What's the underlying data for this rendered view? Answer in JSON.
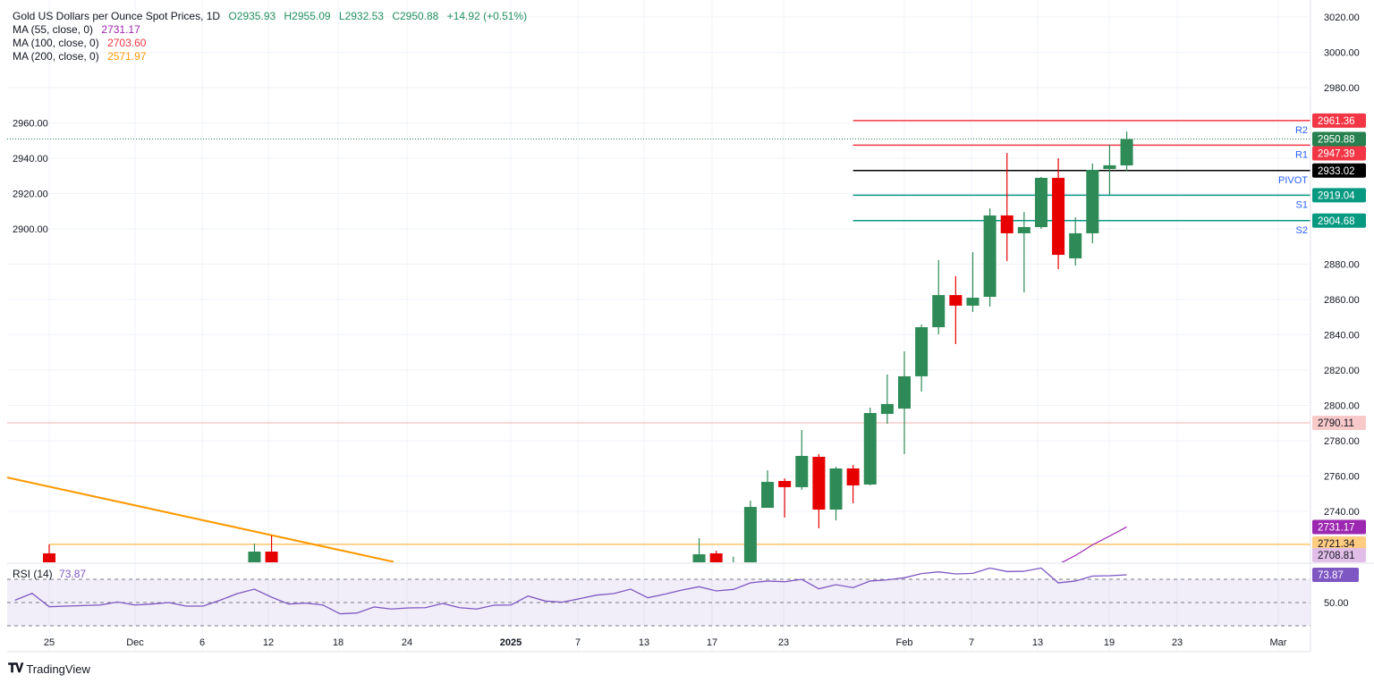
{
  "header": {
    "title": "Gold US Dollars per Ounce Spot Prices, 1D",
    "open": "O2935.93",
    "high": "H2955.09",
    "low": "L2932.53",
    "close": "C2950.88",
    "change": "+14.92 (+0.51%)",
    "value_color": "#22915e"
  },
  "indicators": [
    {
      "label": "MA (55, close, 0)",
      "value": "2731.17",
      "color": "#9c27b0"
    },
    {
      "label": "MA (100, close, 0)",
      "value": "2703.60",
      "color": "#f23645"
    },
    {
      "label": "MA (200, close, 0)",
      "value": "2571.97",
      "color": "#ff9800"
    }
  ],
  "rsi_legend": {
    "label": "RSI (14)",
    "value": "73.87",
    "color": "#7e57c2"
  },
  "footer": {
    "brand": "TradingView",
    "logo_text": "TV"
  },
  "chart_data": [
    {
      "type": "candlestick",
      "title": "Gold US Dollars per Ounce Spot Prices, 1D",
      "ylim": [
        2700,
        3030
      ],
      "y_ticks": [
        2740,
        2760,
        2780,
        2800,
        2820,
        2840,
        2860,
        2880,
        2900,
        2920,
        2940,
        2960,
        2980,
        3000,
        3020
      ],
      "y_tick_labels": [
        "2740.00",
        "2760.00",
        "2780.00",
        "2800.00",
        "2820.00",
        "2840.00",
        "2860.00",
        "2880.00",
        "2900.00",
        "2920.00",
        "2940.00",
        "2960.00",
        "2980.00",
        "3000.00",
        "3020.00"
      ],
      "x_tick_labels": [
        "25",
        "Dec",
        "6",
        "12",
        "18",
        "24",
        "2025",
        "7",
        "13",
        "17",
        "23",
        "Feb",
        "7",
        "13",
        "19",
        "23",
        "Mar"
      ],
      "grid": true,
      "colors": {
        "up": "#2e8b57",
        "down": "#e60000"
      },
      "candles": [
        {
          "date": "2024-11-25",
          "o": 2716.2,
          "h": 2721.3,
          "l": 2700,
          "c": 2705
        },
        {
          "date": "2024-12-11",
          "o": 2705,
          "h": 2721.8,
          "l": 2700,
          "c": 2717.2
        },
        {
          "date": "2024-12-12",
          "o": 2717.2,
          "h": 2726.3,
          "l": 2700,
          "c": 2705
        },
        {
          "date": "2025-01-16",
          "o": 2706,
          "h": 2724.8,
          "l": 2700,
          "c": 2715.7
        },
        {
          "date": "2025-01-17",
          "o": 2716.2,
          "h": 2717.7,
          "l": 2700,
          "c": 2705
        },
        {
          "date": "2025-01-20",
          "o": 2705,
          "h": 2714.4,
          "l": 2700,
          "c": 2708
        },
        {
          "date": "2025-01-21",
          "o": 2707,
          "h": 2746.1,
          "l": 2703,
          "c": 2742.5
        },
        {
          "date": "2025-01-22",
          "o": 2742,
          "h": 2763.3,
          "l": 2742,
          "c": 2756.7
        },
        {
          "date": "2025-01-23",
          "o": 2757.2,
          "h": 2758.7,
          "l": 2736.5,
          "c": 2753.7
        },
        {
          "date": "2025-01-24",
          "o": 2753.7,
          "h": 2786.1,
          "l": 2752.2,
          "c": 2771.4
        },
        {
          "date": "2025-01-27",
          "o": 2770.9,
          "h": 2772.4,
          "l": 2730.4,
          "c": 2741
        },
        {
          "date": "2025-01-28",
          "o": 2741,
          "h": 2765.3,
          "l": 2734.9,
          "c": 2764.3
        },
        {
          "date": "2025-01-29",
          "o": 2764.3,
          "h": 2766.3,
          "l": 2744.6,
          "c": 2754.7
        },
        {
          "date": "2025-01-30",
          "o": 2755.2,
          "h": 2798.7,
          "l": 2754.7,
          "c": 2795.7
        },
        {
          "date": "2025-01-31",
          "o": 2795.2,
          "h": 2817.5,
          "l": 2789.6,
          "c": 2800.8
        },
        {
          "date": "2025-02-03",
          "o": 2798.2,
          "h": 2830.6,
          "l": 2772.4,
          "c": 2816.5
        },
        {
          "date": "2025-02-04",
          "o": 2816.5,
          "h": 2845.8,
          "l": 2807.8,
          "c": 2844.3
        },
        {
          "date": "2025-02-05",
          "o": 2844.3,
          "h": 2882.3,
          "l": 2840.3,
          "c": 2862.5
        },
        {
          "date": "2025-02-06",
          "o": 2862.5,
          "h": 2873.2,
          "l": 2834.7,
          "c": 2856.5
        },
        {
          "date": "2025-02-07",
          "o": 2856.5,
          "h": 2886.8,
          "l": 2852.9,
          "c": 2861
        },
        {
          "date": "2025-02-10",
          "o": 2861.5,
          "h": 2911.6,
          "l": 2856,
          "c": 2907.6
        },
        {
          "date": "2025-02-11",
          "o": 2907.6,
          "h": 2943,
          "l": 2881.8,
          "c": 2897.5
        },
        {
          "date": "2025-02-12",
          "o": 2897.5,
          "h": 2909.6,
          "l": 2864,
          "c": 2901
        },
        {
          "date": "2025-02-13",
          "o": 2901,
          "h": 2929.4,
          "l": 2900,
          "c": 2928.9
        },
        {
          "date": "2025-02-14",
          "o": 2928.9,
          "h": 2940,
          "l": 2877.2,
          "c": 2885.3
        },
        {
          "date": "2025-02-17",
          "o": 2883.3,
          "h": 2906.6,
          "l": 2879.2,
          "c": 2897.5
        },
        {
          "date": "2025-02-18",
          "o": 2897.5,
          "h": 2937,
          "l": 2891.9,
          "c": 2933.4
        },
        {
          "date": "2025-02-19",
          "o": 2933.9,
          "h": 2947.6,
          "l": 2919.2,
          "c": 2936
        },
        {
          "date": "2025-02-20",
          "o": 2935.93,
          "h": 2955.09,
          "l": 2932.53,
          "c": 2950.88
        }
      ],
      "current_price": {
        "value": 2950.88,
        "label": "2950.88",
        "color": "#26804f"
      },
      "ma55": {
        "color": "#9c27b0",
        "label": "2731.17",
        "points": [
          {
            "date": "2025-02-14",
            "value": 2710
          },
          {
            "date": "2025-02-17",
            "value": 2715
          },
          {
            "date": "2025-02-18",
            "value": 2721
          },
          {
            "date": "2025-02-19",
            "value": 2726
          },
          {
            "date": "2025-02-20",
            "value": 2731.17
          }
        ]
      },
      "pivots": {
        "from_date": "2025-01-29",
        "levels": [
          {
            "name": "R2",
            "value": 2961.36,
            "label": "2961.36",
            "line_color": "#f23645",
            "badge_color": "#f23645",
            "text_color": "#ffffff"
          },
          {
            "name": "R1",
            "value": 2947.39,
            "label": "2947.39",
            "line_color": "#f23645",
            "badge_color": "#f23645",
            "text_color": "#ffffff"
          },
          {
            "name": "PIVOT",
            "value": 2933.02,
            "label": "2933.02",
            "line_color": "#000000",
            "badge_color": "#000000",
            "text_color": "#ffffff"
          },
          {
            "name": "S1",
            "value": 2919.04,
            "label": "2919.04",
            "line_color": "#089981",
            "badge_color": "#089981",
            "text_color": "#ffffff"
          },
          {
            "name": "S2",
            "value": 2904.68,
            "label": "2904.68",
            "line_color": "#089981",
            "badge_color": "#089981",
            "text_color": "#ffffff"
          }
        ],
        "name_color": "#2962ff"
      },
      "horizontal_lines": [
        {
          "value": 2790.11,
          "label": "2790.11",
          "color": "#f7c0c0",
          "badge_color": "#f8c9c9",
          "text_color": "#131722"
        },
        {
          "value": 2721.34,
          "label": "2721.34",
          "color": "#ffb74d",
          "badge_color": "#ffcc80",
          "text_color": "#131722",
          "from_date": "2024-11-25"
        }
      ],
      "extra_badges": [
        {
          "value": 2708.81,
          "label": "2708.81",
          "badge_color": "#e1bee7",
          "text_color": "#131722"
        }
      ],
      "trend_line": {
        "color": "#ff9800",
        "points": [
          {
            "date": "2024-11-25",
            "value": 2754.0
          },
          {
            "date": "2024-12-12",
            "value": 2726.5
          }
        ]
      }
    },
    {
      "type": "line",
      "title": "RSI (14)",
      "ylim": [
        20,
        85
      ],
      "bands": [
        30,
        50,
        70
      ],
      "y_tick_labels": [
        "50.00"
      ],
      "color": "#7e57c2",
      "last_label": "73.87",
      "points": [
        {
          "date": "2024-11-21",
          "value": 52
        },
        {
          "date": "2024-11-22",
          "value": 57.9
        },
        {
          "date": "2024-11-25",
          "value": 46.4
        },
        {
          "date": "2024-11-26",
          "value": 46.9
        },
        {
          "date": "2024-11-27",
          "value": 47.4
        },
        {
          "date": "2024-11-28",
          "value": 47.9
        },
        {
          "date": "2024-11-29",
          "value": 50.5
        },
        {
          "date": "2024-12-02",
          "value": 47.9
        },
        {
          "date": "2024-12-03",
          "value": 48.7
        },
        {
          "date": "2024-12-04",
          "value": 50
        },
        {
          "date": "2024-12-05",
          "value": 46.9
        },
        {
          "date": "2024-12-06",
          "value": 46.9
        },
        {
          "date": "2024-12-09",
          "value": 52
        },
        {
          "date": "2024-12-10",
          "value": 57.7
        },
        {
          "date": "2024-12-11",
          "value": 61.5
        },
        {
          "date": "2024-12-12",
          "value": 54.6
        },
        {
          "date": "2024-12-13",
          "value": 48.7
        },
        {
          "date": "2024-12-16",
          "value": 49.5
        },
        {
          "date": "2024-12-17",
          "value": 47.9
        },
        {
          "date": "2024-12-18",
          "value": 40.3
        },
        {
          "date": "2024-12-19",
          "value": 41
        },
        {
          "date": "2024-12-20",
          "value": 46.2
        },
        {
          "date": "2024-12-23",
          "value": 44.4
        },
        {
          "date": "2024-12-24",
          "value": 45.4
        },
        {
          "date": "2024-12-25",
          "value": 45.6
        },
        {
          "date": "2024-12-26",
          "value": 49.2
        },
        {
          "date": "2024-12-27",
          "value": 45.6
        },
        {
          "date": "2024-12-30",
          "value": 44.4
        },
        {
          "date": "2024-12-31",
          "value": 47.7
        },
        {
          "date": "2025-01-01",
          "value": 47.9
        },
        {
          "date": "2025-01-02",
          "value": 55.6
        },
        {
          "date": "2025-01-03",
          "value": 51.3
        },
        {
          "date": "2025-01-06",
          "value": 50.3
        },
        {
          "date": "2025-01-07",
          "value": 53.3
        },
        {
          "date": "2025-01-08",
          "value": 56.4
        },
        {
          "date": "2025-01-09",
          "value": 57.7
        },
        {
          "date": "2025-01-10",
          "value": 61.5
        },
        {
          "date": "2025-01-13",
          "value": 54.1
        },
        {
          "date": "2025-01-14",
          "value": 57.2
        },
        {
          "date": "2025-01-15",
          "value": 60.8
        },
        {
          "date": "2025-01-16",
          "value": 63.6
        },
        {
          "date": "2025-01-17",
          "value": 60
        },
        {
          "date": "2025-01-20",
          "value": 61.3
        },
        {
          "date": "2025-01-21",
          "value": 66.9
        },
        {
          "date": "2025-01-22",
          "value": 68.5
        },
        {
          "date": "2025-01-23",
          "value": 67.9
        },
        {
          "date": "2025-01-24",
          "value": 70
        },
        {
          "date": "2025-01-27",
          "value": 61.8
        },
        {
          "date": "2025-01-28",
          "value": 65.4
        },
        {
          "date": "2025-01-29",
          "value": 62.8
        },
        {
          "date": "2025-01-30",
          "value": 68.5
        },
        {
          "date": "2025-01-31",
          "value": 69.5
        },
        {
          "date": "2025-02-03",
          "value": 71.3
        },
        {
          "date": "2025-02-04",
          "value": 74.9
        },
        {
          "date": "2025-02-05",
          "value": 76.4
        },
        {
          "date": "2025-02-06",
          "value": 74.6
        },
        {
          "date": "2025-02-07",
          "value": 75.1
        },
        {
          "date": "2025-02-10",
          "value": 79.7
        },
        {
          "date": "2025-02-11",
          "value": 76.7
        },
        {
          "date": "2025-02-12",
          "value": 76.9
        },
        {
          "date": "2025-02-13",
          "value": 79.7
        },
        {
          "date": "2025-02-14",
          "value": 66.9
        },
        {
          "date": "2025-02-17",
          "value": 68.5
        },
        {
          "date": "2025-02-18",
          "value": 72.8
        },
        {
          "date": "2025-02-19",
          "value": 73.1
        },
        {
          "date": "2025-02-20",
          "value": 73.87
        }
      ]
    }
  ]
}
